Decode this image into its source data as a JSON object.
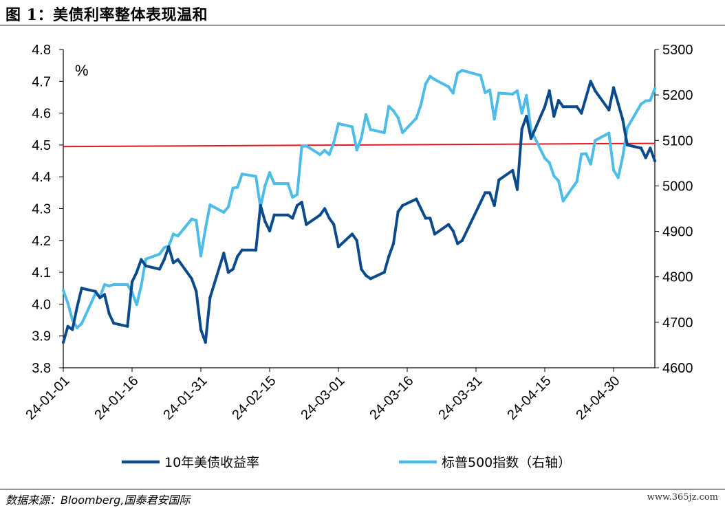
{
  "header": {
    "title": "图 1：美债利率整体表现温和"
  },
  "footer": {
    "source": "数据来源：Bloomberg,国泰君安国际",
    "watermark": "www.365jz.com"
  },
  "chart_data": {
    "type": "line",
    "unit_label": "%",
    "x_ticks": [
      "24-01-01",
      "24-01-16",
      "24-01-31",
      "24-02-15",
      "24-03-01",
      "24-03-16",
      "24-03-31",
      "24-04-15",
      "24-04-30"
    ],
    "x_start": "2024-01-01",
    "x_end": "2024-05-09",
    "y_left": {
      "ticks": [
        3.8,
        3.9,
        4.0,
        4.1,
        4.2,
        4.3,
        4.4,
        4.5,
        4.6,
        4.7,
        4.8
      ],
      "lim": [
        3.8,
        4.8
      ]
    },
    "y_right": {
      "ticks": [
        4600,
        4700,
        4800,
        4900,
        5000,
        5100,
        5200,
        5300
      ],
      "lim": [
        4600,
        5300
      ]
    },
    "reference_line": {
      "axis": "left",
      "from": 4.495,
      "to": 4.505,
      "color": "#e8131b"
    },
    "series": [
      {
        "name": "10年美债收益率",
        "axis": "left",
        "color": "#0b4a8b",
        "points": [
          [
            "2024-01-01",
            3.88
          ],
          [
            "2024-01-02",
            3.93
          ],
          [
            "2024-01-03",
            3.92
          ],
          [
            "2024-01-04",
            3.99
          ],
          [
            "2024-01-05",
            4.05
          ],
          [
            "2024-01-08",
            4.04
          ],
          [
            "2024-01-09",
            4.02
          ],
          [
            "2024-01-10",
            4.03
          ],
          [
            "2024-01-11",
            3.97
          ],
          [
            "2024-01-12",
            3.94
          ],
          [
            "2024-01-15",
            3.93
          ],
          [
            "2024-01-16",
            4.07
          ],
          [
            "2024-01-17",
            4.1
          ],
          [
            "2024-01-18",
            4.14
          ],
          [
            "2024-01-19",
            4.12
          ],
          [
            "2024-01-22",
            4.11
          ],
          [
            "2024-01-23",
            4.14
          ],
          [
            "2024-01-24",
            4.18
          ],
          [
            "2024-01-25",
            4.13
          ],
          [
            "2024-01-26",
            4.14
          ],
          [
            "2024-01-29",
            4.08
          ],
          [
            "2024-01-30",
            4.04
          ],
          [
            "2024-01-31",
            3.92
          ],
          [
            "2024-02-01",
            3.88
          ],
          [
            "2024-02-02",
            4.02
          ],
          [
            "2024-02-05",
            4.16
          ],
          [
            "2024-02-06",
            4.1
          ],
          [
            "2024-02-07",
            4.11
          ],
          [
            "2024-02-08",
            4.15
          ],
          [
            "2024-02-09",
            4.17
          ],
          [
            "2024-02-12",
            4.17
          ],
          [
            "2024-02-13",
            4.31
          ],
          [
            "2024-02-14",
            4.26
          ],
          [
            "2024-02-15",
            4.23
          ],
          [
            "2024-02-16",
            4.28
          ],
          [
            "2024-02-19",
            4.28
          ],
          [
            "2024-02-20",
            4.27
          ],
          [
            "2024-02-21",
            4.31
          ],
          [
            "2024-02-22",
            4.32
          ],
          [
            "2024-02-23",
            4.25
          ],
          [
            "2024-02-26",
            4.28
          ],
          [
            "2024-02-27",
            4.3
          ],
          [
            "2024-02-28",
            4.27
          ],
          [
            "2024-02-29",
            4.25
          ],
          [
            "2024-03-01",
            4.18
          ],
          [
            "2024-03-04",
            4.22
          ],
          [
            "2024-03-05",
            4.2
          ],
          [
            "2024-03-06",
            4.11
          ],
          [
            "2024-03-07",
            4.09
          ],
          [
            "2024-03-08",
            4.08
          ],
          [
            "2024-03-11",
            4.1
          ],
          [
            "2024-03-12",
            4.15
          ],
          [
            "2024-03-13",
            4.19
          ],
          [
            "2024-03-14",
            4.29
          ],
          [
            "2024-03-15",
            4.31
          ],
          [
            "2024-03-18",
            4.33
          ],
          [
            "2024-03-19",
            4.3
          ],
          [
            "2024-03-20",
            4.27
          ],
          [
            "2024-03-21",
            4.27
          ],
          [
            "2024-03-22",
            4.22
          ],
          [
            "2024-03-25",
            4.25
          ],
          [
            "2024-03-26",
            4.23
          ],
          [
            "2024-03-27",
            4.19
          ],
          [
            "2024-03-28",
            4.2
          ],
          [
            "2024-04-01",
            4.32
          ],
          [
            "2024-04-02",
            4.35
          ],
          [
            "2024-04-03",
            4.35
          ],
          [
            "2024-04-04",
            4.31
          ],
          [
            "2024-04-05",
            4.39
          ],
          [
            "2024-04-08",
            4.42
          ],
          [
            "2024-04-09",
            4.36
          ],
          [
            "2024-04-10",
            4.55
          ],
          [
            "2024-04-11",
            4.59
          ],
          [
            "2024-04-12",
            4.52
          ],
          [
            "2024-04-15",
            4.62
          ],
          [
            "2024-04-16",
            4.67
          ],
          [
            "2024-04-17",
            4.59
          ],
          [
            "2024-04-18",
            4.64
          ],
          [
            "2024-04-19",
            4.62
          ],
          [
            "2024-04-22",
            4.62
          ],
          [
            "2024-04-23",
            4.6
          ],
          [
            "2024-04-24",
            4.65
          ],
          [
            "2024-04-25",
            4.7
          ],
          [
            "2024-04-26",
            4.67
          ],
          [
            "2024-04-29",
            4.61
          ],
          [
            "2024-04-30",
            4.68
          ],
          [
            "2024-05-01",
            4.63
          ],
          [
            "2024-05-02",
            4.58
          ],
          [
            "2024-05-03",
            4.5
          ],
          [
            "2024-05-06",
            4.49
          ],
          [
            "2024-05-07",
            4.46
          ],
          [
            "2024-05-08",
            4.49
          ],
          [
            "2024-05-09",
            4.45
          ]
        ]
      },
      {
        "name": "标普500指数（右轴）",
        "axis": "right",
        "color": "#4dbde8",
        "points": [
          [
            "2024-01-01",
            4770
          ],
          [
            "2024-01-02",
            4742
          ],
          [
            "2024-01-03",
            4705
          ],
          [
            "2024-01-04",
            4688
          ],
          [
            "2024-01-05",
            4697
          ],
          [
            "2024-01-08",
            4763
          ],
          [
            "2024-01-09",
            4756
          ],
          [
            "2024-01-10",
            4783
          ],
          [
            "2024-01-11",
            4780
          ],
          [
            "2024-01-12",
            4783
          ],
          [
            "2024-01-15",
            4783
          ],
          [
            "2024-01-16",
            4766
          ],
          [
            "2024-01-17",
            4739
          ],
          [
            "2024-01-18",
            4780
          ],
          [
            "2024-01-19",
            4839
          ],
          [
            "2024-01-22",
            4850
          ],
          [
            "2024-01-23",
            4864
          ],
          [
            "2024-01-24",
            4868
          ],
          [
            "2024-01-25",
            4894
          ],
          [
            "2024-01-26",
            4890
          ],
          [
            "2024-01-29",
            4927
          ],
          [
            "2024-01-30",
            4924
          ],
          [
            "2024-01-31",
            4846
          ],
          [
            "2024-02-01",
            4906
          ],
          [
            "2024-02-02",
            4958
          ],
          [
            "2024-02-05",
            4942
          ],
          [
            "2024-02-06",
            4954
          ],
          [
            "2024-02-07",
            4995
          ],
          [
            "2024-02-08",
            4997
          ],
          [
            "2024-02-09",
            5026
          ],
          [
            "2024-02-12",
            5021
          ],
          [
            "2024-02-13",
            4953
          ],
          [
            "2024-02-14",
            5000
          ],
          [
            "2024-02-15",
            5029
          ],
          [
            "2024-02-16",
            5005
          ],
          [
            "2024-02-19",
            5005
          ],
          [
            "2024-02-20",
            4975
          ],
          [
            "2024-02-21",
            4981
          ],
          [
            "2024-02-22",
            5087
          ],
          [
            "2024-02-23",
            5088
          ],
          [
            "2024-02-26",
            5069
          ],
          [
            "2024-02-27",
            5078
          ],
          [
            "2024-02-28",
            5069
          ],
          [
            "2024-02-29",
            5096
          ],
          [
            "2024-03-01",
            5137
          ],
          [
            "2024-03-04",
            5130
          ],
          [
            "2024-03-05",
            5079
          ],
          [
            "2024-03-06",
            5105
          ],
          [
            "2024-03-07",
            5157
          ],
          [
            "2024-03-08",
            5124
          ],
          [
            "2024-03-11",
            5117
          ],
          [
            "2024-03-12",
            5175
          ],
          [
            "2024-03-13",
            5165
          ],
          [
            "2024-03-14",
            5150
          ],
          [
            "2024-03-15",
            5117
          ],
          [
            "2024-03-18",
            5149
          ],
          [
            "2024-03-19",
            5179
          ],
          [
            "2024-03-20",
            5224
          ],
          [
            "2024-03-21",
            5241
          ],
          [
            "2024-03-22",
            5234
          ],
          [
            "2024-03-25",
            5218
          ],
          [
            "2024-03-26",
            5204
          ],
          [
            "2024-03-27",
            5248
          ],
          [
            "2024-03-28",
            5254
          ],
          [
            "2024-04-01",
            5243
          ],
          [
            "2024-04-02",
            5205
          ],
          [
            "2024-04-03",
            5211
          ],
          [
            "2024-04-04",
            5147
          ],
          [
            "2024-04-05",
            5204
          ],
          [
            "2024-04-08",
            5202
          ],
          [
            "2024-04-09",
            5209
          ],
          [
            "2024-04-10",
            5160
          ],
          [
            "2024-04-11",
            5199
          ],
          [
            "2024-04-12",
            5123
          ],
          [
            "2024-04-15",
            5061
          ],
          [
            "2024-04-16",
            5051
          ],
          [
            "2024-04-17",
            5022
          ],
          [
            "2024-04-18",
            5011
          ],
          [
            "2024-04-19",
            4967
          ],
          [
            "2024-04-22",
            5010
          ],
          [
            "2024-04-23",
            5070
          ],
          [
            "2024-04-24",
            5071
          ],
          [
            "2024-04-25",
            5048
          ],
          [
            "2024-04-26",
            5100
          ],
          [
            "2024-04-29",
            5116
          ],
          [
            "2024-04-30",
            5035
          ],
          [
            "2024-05-01",
            5018
          ],
          [
            "2024-05-02",
            5064
          ],
          [
            "2024-05-03",
            5128
          ],
          [
            "2024-05-06",
            5180
          ],
          [
            "2024-05-07",
            5187
          ],
          [
            "2024-05-08",
            5188
          ],
          [
            "2024-05-09",
            5214
          ]
        ]
      }
    ]
  }
}
